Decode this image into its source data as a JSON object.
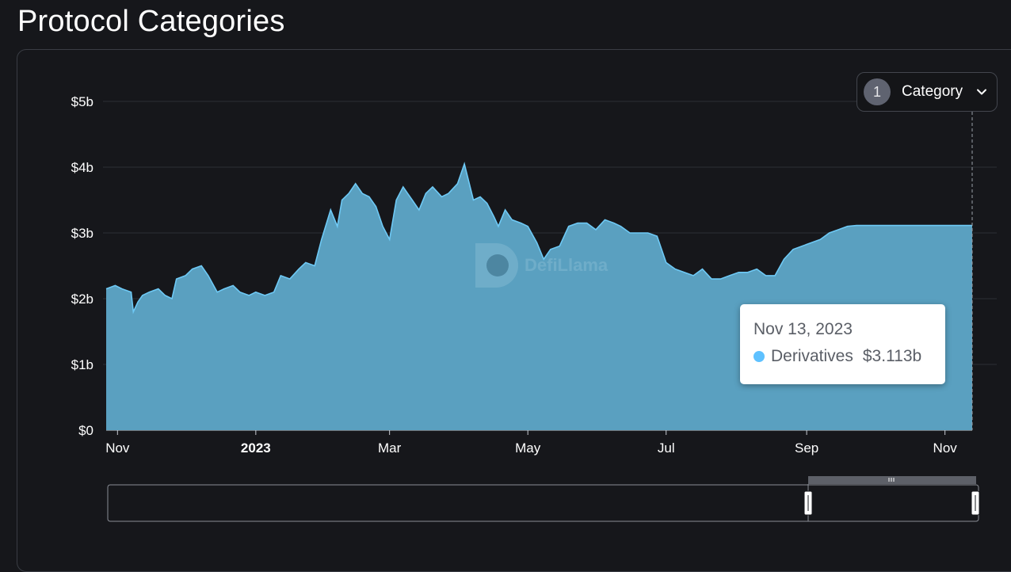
{
  "page": {
    "title": "Protocol Categories"
  },
  "filter": {
    "count": "1",
    "label": "Category"
  },
  "tooltip": {
    "date": "Nov 13, 2023",
    "series_name": "Derivatives",
    "value": "$3.113b"
  },
  "watermark": {
    "text": "DefiLlama"
  },
  "colors": {
    "area_fill": "#5aa0c0",
    "area_line": "#6ec9f5",
    "background": "#16171b",
    "tooltip_dot": "#5ec1ff"
  },
  "chart_data": {
    "type": "area",
    "title": "",
    "xlabel": "",
    "ylabel": "",
    "ylim": [
      0,
      5
    ],
    "y_unit": "billion USD",
    "y_ticks": [
      {
        "value": 0,
        "label": "$0"
      },
      {
        "value": 1,
        "label": "$1b"
      },
      {
        "value": 2,
        "label": "$2b"
      },
      {
        "value": 3,
        "label": "$3b"
      },
      {
        "value": 4,
        "label": "$4b"
      },
      {
        "value": 5,
        "label": "$5b"
      }
    ],
    "x_range": [
      "2022-10-27",
      "2023-11-13"
    ],
    "x_ticks": [
      {
        "date": "2022-11-01",
        "label": "Nov",
        "bold": false
      },
      {
        "date": "2023-01-01",
        "label": "2023",
        "bold": true
      },
      {
        "date": "2023-03-01",
        "label": "Mar",
        "bold": false
      },
      {
        "date": "2023-05-01",
        "label": "May",
        "bold": false
      },
      {
        "date": "2023-07-01",
        "label": "Jul",
        "bold": false
      },
      {
        "date": "2023-09-01",
        "label": "Sep",
        "bold": false
      },
      {
        "date": "2023-11-01",
        "label": "Nov",
        "bold": false
      }
    ],
    "grid": true,
    "legend": "none",
    "series": [
      {
        "name": "Derivatives",
        "x": [
          "2022-10-27",
          "2022-10-31",
          "2022-11-03",
          "2022-11-07",
          "2022-11-08",
          "2022-11-10",
          "2022-11-12",
          "2022-11-15",
          "2022-11-19",
          "2022-11-22",
          "2022-11-25",
          "2022-11-27",
          "2022-12-01",
          "2022-12-04",
          "2022-12-08",
          "2022-12-11",
          "2022-12-15",
          "2022-12-18",
          "2022-12-22",
          "2022-12-25",
          "2022-12-29",
          "2023-01-01",
          "2023-01-05",
          "2023-01-09",
          "2023-01-12",
          "2023-01-16",
          "2023-01-20",
          "2023-01-23",
          "2023-01-27",
          "2023-01-30",
          "2023-02-03",
          "2023-02-06",
          "2023-02-08",
          "2023-02-11",
          "2023-02-14",
          "2023-02-17",
          "2023-02-20",
          "2023-02-23",
          "2023-02-26",
          "2023-03-01",
          "2023-03-04",
          "2023-03-07",
          "2023-03-09",
          "2023-03-11",
          "2023-03-14",
          "2023-03-17",
          "2023-03-20",
          "2023-03-24",
          "2023-03-27",
          "2023-03-31",
          "2023-04-03",
          "2023-04-07",
          "2023-04-10",
          "2023-04-13",
          "2023-04-16",
          "2023-04-18",
          "2023-04-21",
          "2023-04-24",
          "2023-04-28",
          "2023-05-01",
          "2023-05-05",
          "2023-05-08",
          "2023-05-11",
          "2023-05-15",
          "2023-05-19",
          "2023-05-23",
          "2023-05-27",
          "2023-05-31",
          "2023-06-04",
          "2023-06-08",
          "2023-06-11",
          "2023-06-15",
          "2023-06-19",
          "2023-06-23",
          "2023-06-27",
          "2023-07-01",
          "2023-07-05",
          "2023-07-09",
          "2023-07-13",
          "2023-07-17",
          "2023-07-21",
          "2023-07-25",
          "2023-07-29",
          "2023-08-02",
          "2023-08-06",
          "2023-08-10",
          "2023-08-14",
          "2023-08-18",
          "2023-08-22",
          "2023-08-26",
          "2023-08-30",
          "2023-09-03",
          "2023-09-07",
          "2023-09-11",
          "2023-09-15",
          "2023-09-19",
          "2023-09-23",
          "2023-09-27",
          "2023-10-01",
          "2023-10-05",
          "2023-10-09",
          "2023-10-13",
          "2023-10-17",
          "2023-10-21",
          "2023-10-25",
          "2023-10-29",
          "2023-11-02",
          "2023-11-05",
          "2023-11-08",
          "2023-11-11",
          "2023-11-13"
        ],
        "values": [
          2.15,
          2.2,
          2.15,
          2.1,
          1.8,
          1.95,
          2.05,
          2.1,
          2.15,
          2.05,
          2.0,
          2.3,
          2.35,
          2.45,
          2.5,
          2.35,
          2.1,
          2.15,
          2.2,
          2.1,
          2.05,
          2.1,
          2.05,
          2.1,
          2.35,
          2.3,
          2.45,
          2.55,
          2.5,
          2.9,
          3.35,
          3.1,
          3.5,
          3.6,
          3.75,
          3.6,
          3.55,
          3.4,
          3.1,
          2.9,
          3.5,
          3.7,
          3.6,
          3.5,
          3.35,
          3.6,
          3.7,
          3.55,
          3.6,
          3.75,
          4.05,
          3.5,
          3.55,
          3.45,
          3.25,
          3.1,
          3.35,
          3.2,
          3.15,
          3.1,
          2.85,
          2.6,
          2.75,
          2.8,
          3.1,
          3.15,
          3.15,
          3.05,
          3.2,
          3.15,
          3.1,
          3.0,
          3.0,
          3.0,
          2.95,
          2.55,
          2.45,
          2.4,
          2.35,
          2.45,
          2.3,
          2.3,
          2.35,
          2.4,
          2.4,
          2.45,
          2.35,
          2.35,
          2.6,
          2.75,
          2.8,
          2.85,
          2.9,
          3.0,
          3.05,
          3.1,
          3.113,
          3.113,
          3.113,
          3.113,
          3.113,
          3.113,
          3.113,
          3.113,
          3.113,
          3.113,
          3.113,
          3.113,
          3.113,
          3.113,
          3.113
        ]
      }
    ]
  },
  "range_slider": {
    "aria_label": "Date range selector"
  }
}
